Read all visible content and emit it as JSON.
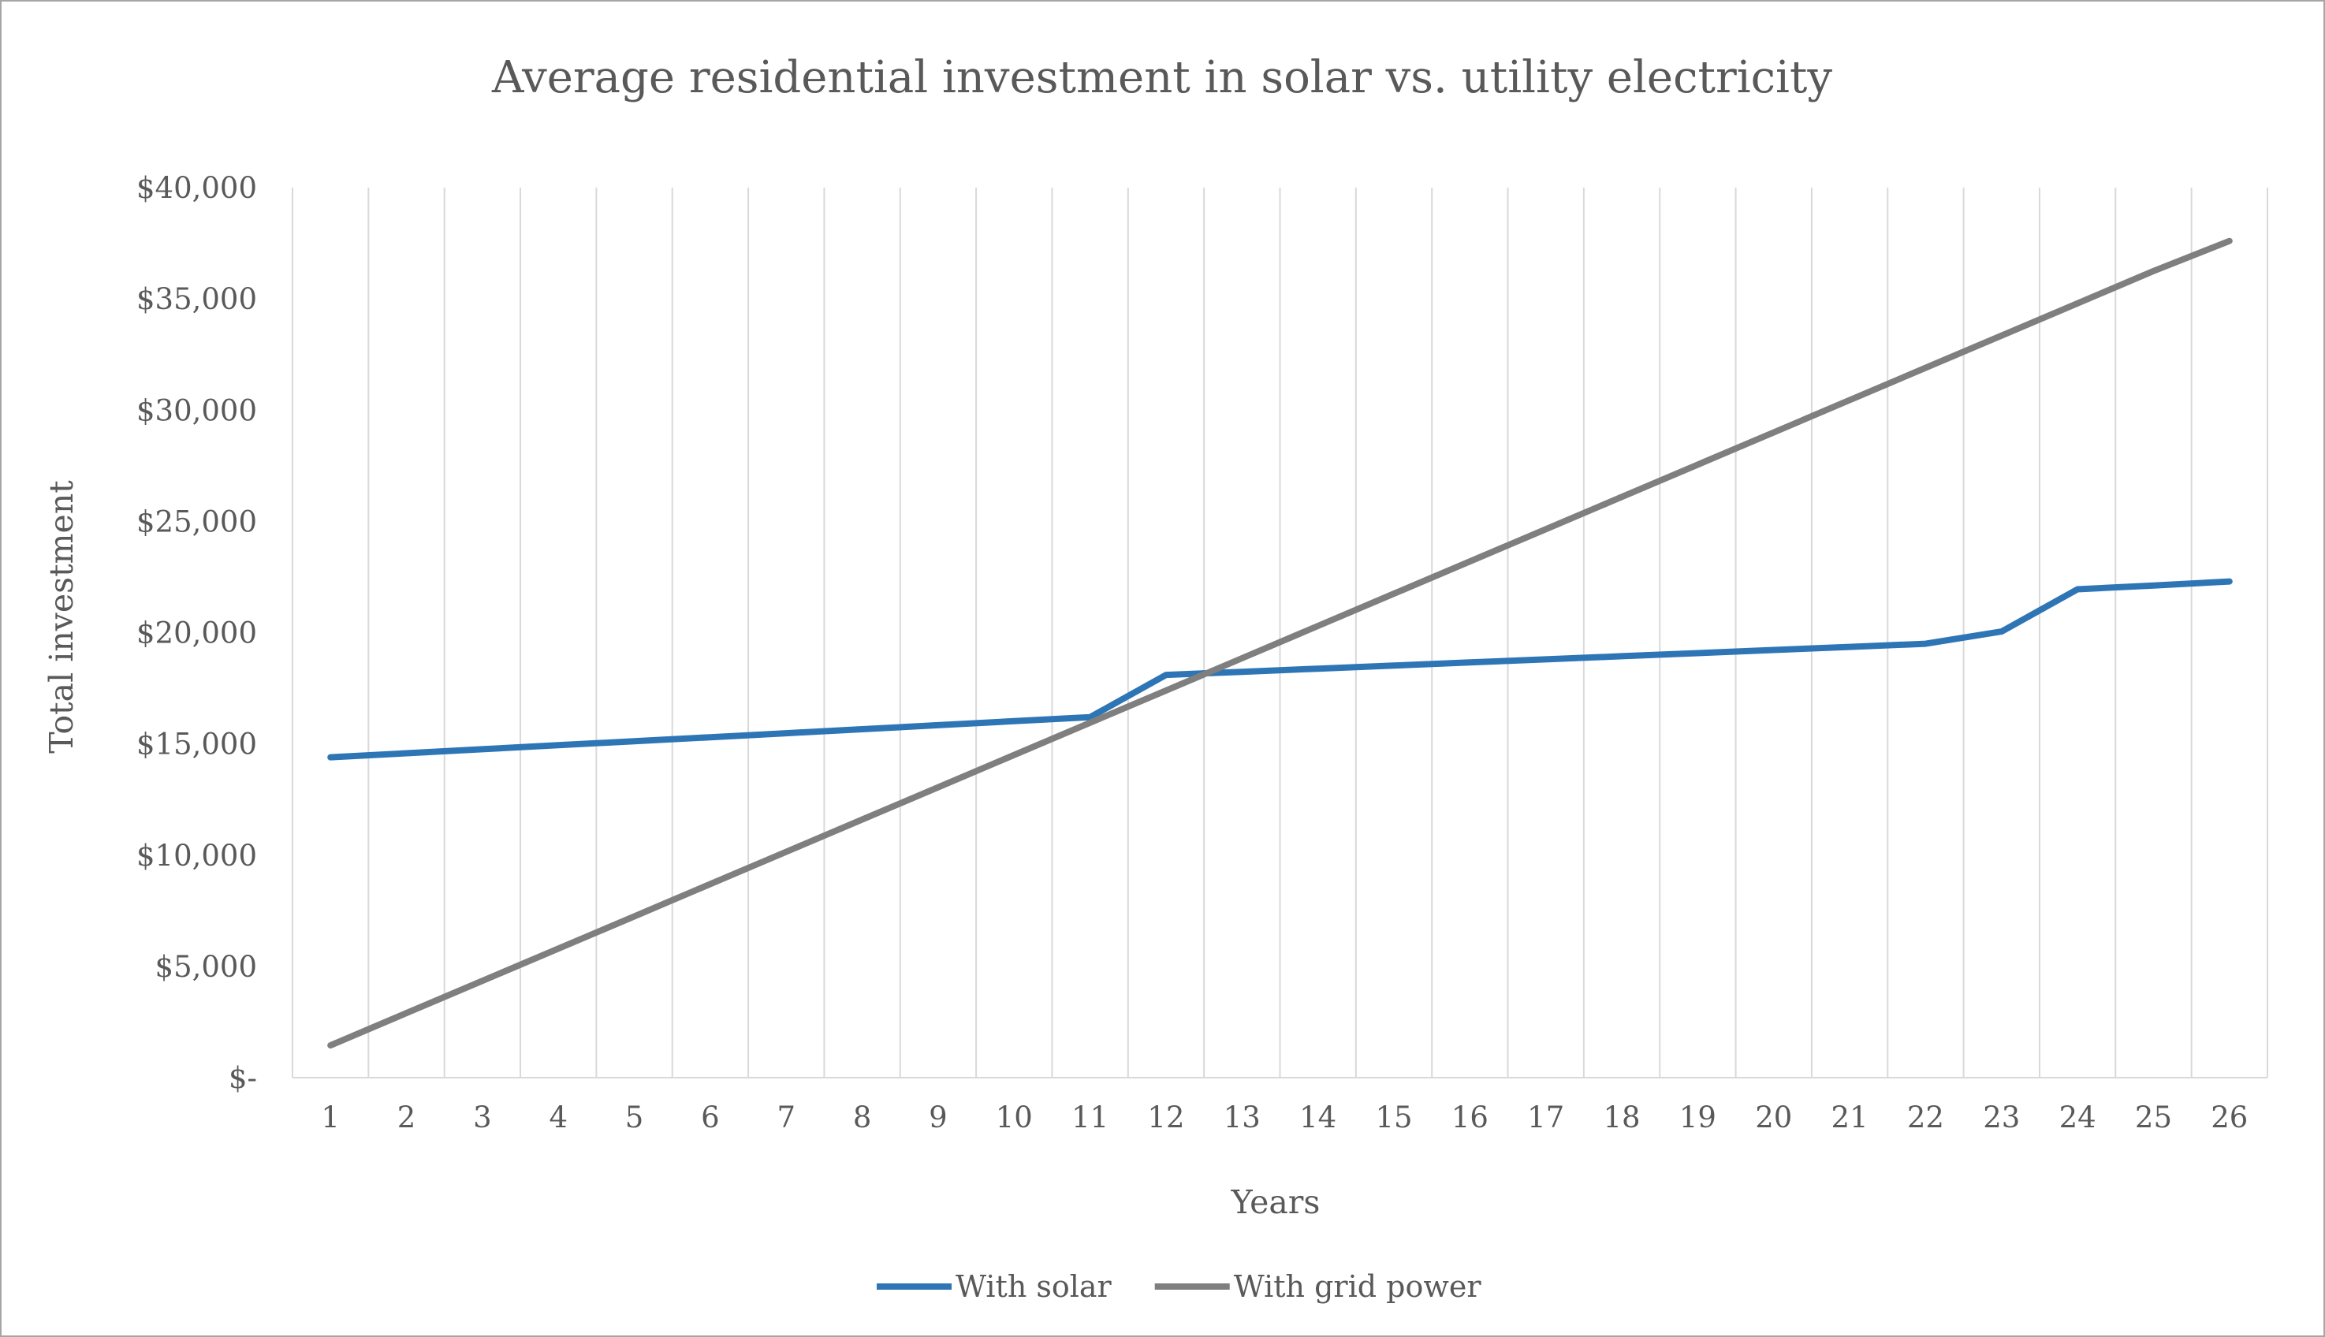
{
  "chart_data": {
    "type": "line",
    "title": "Average residential investment in solar vs. utility electricity",
    "xlabel": "Years",
    "ylabel": "Total investment",
    "categories": [
      "1",
      "2",
      "3",
      "4",
      "5",
      "6",
      "7",
      "8",
      "9",
      "10",
      "11",
      "12",
      "13",
      "14",
      "15",
      "16",
      "17",
      "18",
      "19",
      "20",
      "21",
      "22",
      "23",
      "24",
      "25",
      "26"
    ],
    "ylim": [
      0,
      40000
    ],
    "yticks": [
      0,
      5000,
      10000,
      15000,
      20000,
      25000,
      30000,
      35000,
      40000
    ],
    "ytick_labels": [
      "$-",
      "$5,000",
      "$10,000",
      "$15,000",
      "$20,000",
      "$25,000",
      "$30,000",
      "$35,000",
      "$40,000"
    ],
    "grid": "vertical",
    "legend_position": "bottom",
    "series": [
      {
        "name": "With solar",
        "color": "#2e75b6",
        "values": [
          14400,
          14580,
          14760,
          14940,
          15120,
          15300,
          15480,
          15660,
          15840,
          16020,
          16200,
          18100,
          18240,
          18380,
          18520,
          18660,
          18800,
          18940,
          19080,
          19220,
          19360,
          19500,
          20050,
          21950,
          22120,
          22300
        ]
      },
      {
        "name": "With grid power",
        "color": "#7f7f7f",
        "values": [
          1450,
          2900,
          4350,
          5800,
          7250,
          8700,
          10150,
          11600,
          13050,
          14500,
          15950,
          17400,
          18850,
          20300,
          21750,
          23200,
          24650,
          26100,
          27550,
          29000,
          30450,
          31900,
          33350,
          34800,
          36250,
          37600
        ]
      }
    ]
  }
}
